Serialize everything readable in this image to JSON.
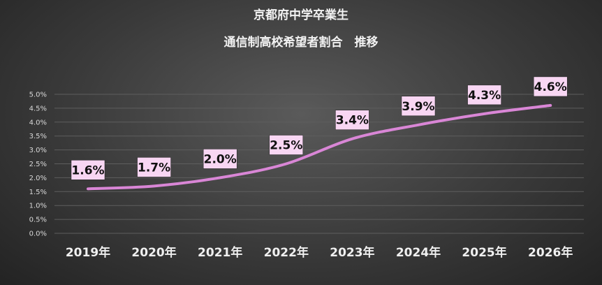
{
  "colors": {
    "line": "#d986d6",
    "label_bg": "#f8d6f3"
  },
  "chart_data": {
    "type": "line",
    "title": [
      "京都府中学卒業生",
      "通信制高校希望者割合　推移"
    ],
    "categories": [
      "2019年",
      "2020年",
      "2021年",
      "2022年",
      "2023年",
      "2024年",
      "2025年",
      "2026年"
    ],
    "series": [
      {
        "values": [
          1.6,
          1.7,
          2.0,
          2.5,
          3.4,
          3.9,
          4.3,
          4.6
        ],
        "labels": [
          "1.6%",
          "1.7%",
          "2.0%",
          "2.5%",
          "3.4%",
          "3.9%",
          "4.3%",
          "4.6%"
        ]
      }
    ],
    "y_ticks": [
      "0.0%",
      "0.5%",
      "1.0%",
      "1.5%",
      "2.0%",
      "2.5%",
      "3.0%",
      "3.5%",
      "4.0%",
      "4.5%",
      "5.0%"
    ],
    "ylim": [
      0,
      5
    ],
    "grid": true,
    "legend": "none"
  }
}
